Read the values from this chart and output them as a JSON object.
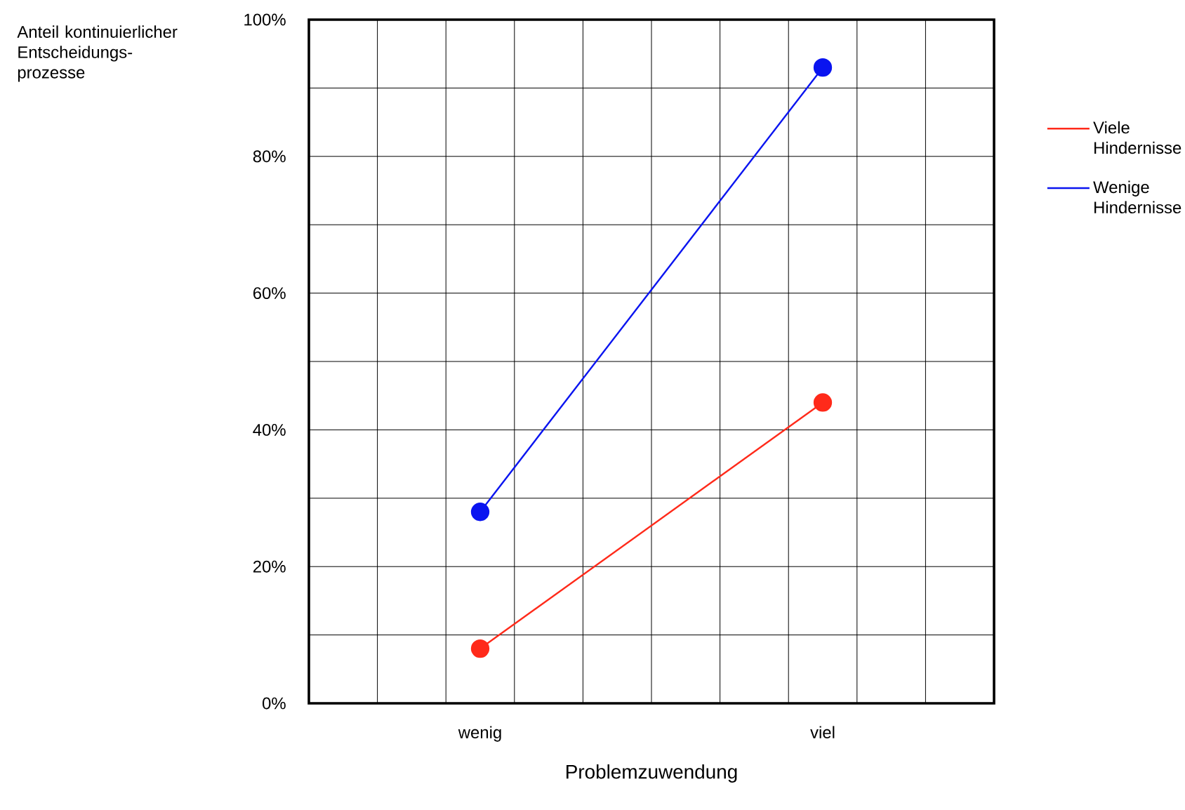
{
  "chart_data": {
    "type": "line",
    "xlabel": "Problemzuwendung",
    "ylabel": "Anteil kontinuierlicher Entscheidungs-prozesse",
    "categories": [
      "wenig",
      "viel"
    ],
    "series": [
      {
        "name": "Viele Hindernisse",
        "color": "#ff2a1a",
        "values": [
          8,
          44
        ]
      },
      {
        "name": "Wenige Hindernisse",
        "color": "#0a14f0",
        "values": [
          28,
          93
        ]
      }
    ],
    "ylim": [
      0,
      100
    ],
    "yticks": [
      {
        "value": 0,
        "label": "0%"
      },
      {
        "value": 20,
        "label": "20%"
      },
      {
        "value": 40,
        "label": "40%"
      },
      {
        "value": 60,
        "label": "60%"
      },
      {
        "value": 80,
        "label": "80%"
      },
      {
        "value": 100,
        "label": "100%"
      }
    ],
    "grid": true,
    "legend": "right",
    "marker": "circle",
    "line_style": "solid"
  }
}
